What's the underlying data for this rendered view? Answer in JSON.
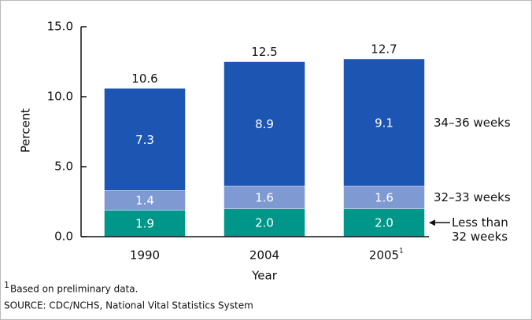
{
  "chart_data": {
    "type": "stacked_bar",
    "x_label": "Year",
    "y_label": "Percent",
    "categories": [
      "1990",
      "2004",
      "2005"
    ],
    "category_footnote_marker": "1",
    "series": [
      {
        "name": "Less than 32 weeks",
        "color": "#00978a",
        "values": [
          1.9,
          2.0,
          2.0
        ],
        "value_labels": [
          "1.9",
          "2.0",
          "2.0"
        ]
      },
      {
        "name": "32–33 weeks",
        "color": "#7f9ad2",
        "values": [
          1.4,
          1.6,
          1.6
        ],
        "value_labels": [
          "1.4",
          "1.6",
          "1.6"
        ]
      },
      {
        "name": "34–36 weeks",
        "color": "#1d55b2",
        "values": [
          7.3,
          8.9,
          9.1
        ],
        "value_labels": [
          "7.3",
          "8.9",
          "9.1"
        ]
      }
    ],
    "totals": [
      10.6,
      12.5,
      12.7
    ],
    "ylim": [
      0,
      15
    ],
    "yticks": [
      {
        "value": 0,
        "label": "0.0"
      },
      {
        "value": 5,
        "label": "5.0"
      },
      {
        "value": 10,
        "label": "10.0"
      },
      {
        "value": 15,
        "label": "15.0"
      }
    ],
    "footnote": {
      "marker": "1",
      "text": "Based on preliminary data."
    },
    "source": "SOURCE: CDC/NCHS, National Vital Statistics System"
  }
}
